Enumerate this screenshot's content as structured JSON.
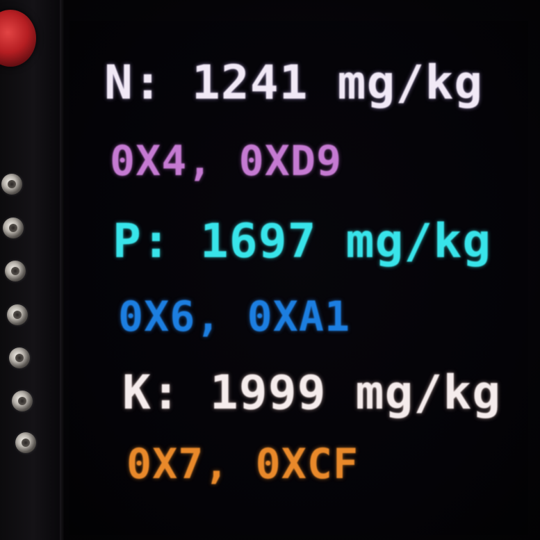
{
  "readings": {
    "nitrogen": {
      "value_line": "N: 1241 mg/kg",
      "hex_line": "0X4, 0XD9"
    },
    "phosphorus": {
      "value_line": "P: 1697 mg/kg",
      "hex_line": "0X6, 0XA1"
    },
    "potassium": {
      "value_line": "K: 1999 mg/kg",
      "hex_line": "0X7, 0XCF"
    }
  },
  "colors": {
    "nitrogen_value": "#f1e9f6",
    "nitrogen_hex": "#c57ad2",
    "phosphorus_value": "#38e4ea",
    "phosphorus_hex": "#1c7ee0",
    "potassium_value": "#f5ecec",
    "potassium_hex": "#e9892a",
    "button": "#b51e22",
    "background": "#040305"
  },
  "icons": {
    "button": "red-button-icon",
    "header_pin": "header-pin-icon"
  }
}
